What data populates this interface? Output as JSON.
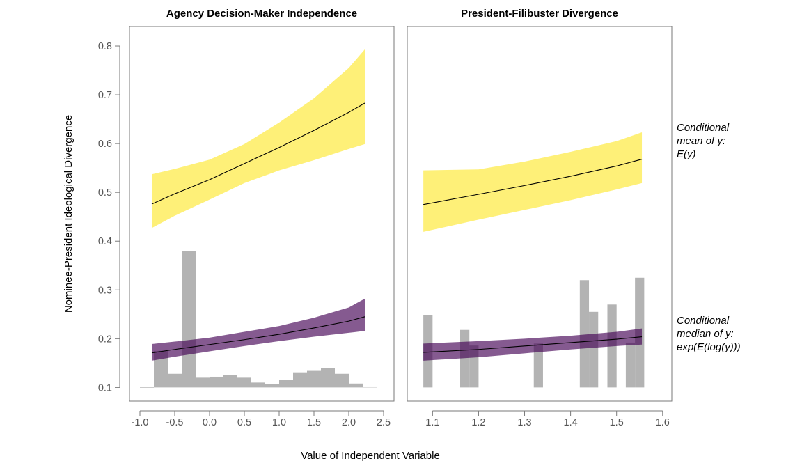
{
  "chart_data": {
    "type": "area",
    "ylabel": "Nominee-President Ideological Divergence",
    "xlabel": "Value of Independent Variable",
    "ylim": [
      0.072,
      0.84
    ],
    "yticks": [
      0.1,
      0.2,
      0.3,
      0.4,
      0.5,
      0.6,
      0.7,
      0.8
    ],
    "yticklabels": [
      "0.1",
      "0.2",
      "0.3",
      "0.4",
      "0.5",
      "0.6",
      "0.7",
      "0.8"
    ],
    "colors": {
      "mean": "#FDE725",
      "median": "#440154",
      "hist": "#A6A6A6",
      "line": "#000000",
      "axis": "#7a7a7a"
    },
    "right_labels": {
      "mean": [
        "Conditional",
        "mean of y:",
        "E(y)"
      ],
      "median": [
        "Conditional",
        "median of y:",
        "exp(E(log(y)))"
      ]
    },
    "panels": [
      {
        "title": "Agency Decision-Maker Independence",
        "xlim": [
          -1.15,
          2.65
        ],
        "xticks": [
          -1.0,
          -0.5,
          0.0,
          0.5,
          1.0,
          1.5,
          2.0,
          2.5
        ],
        "xticklabels": [
          "-1.0",
          "-0.5",
          "0.0",
          "0.5",
          "1.0",
          "1.5",
          "2.0",
          "2.5"
        ],
        "series": [
          {
            "name": "Conditional mean of y",
            "x": [
              -0.83,
              -0.5,
              0.0,
              0.5,
              1.0,
              1.5,
              2.0,
              2.23
            ],
            "fit": [
              0.476,
              0.497,
              0.526,
              0.559,
              0.592,
              0.627,
              0.664,
              0.683
            ],
            "lower": [
              0.427,
              0.452,
              0.485,
              0.519,
              0.545,
              0.566,
              0.589,
              0.599
            ],
            "upper": [
              0.537,
              0.548,
              0.567,
              0.599,
              0.643,
              0.693,
              0.755,
              0.793
            ]
          },
          {
            "name": "Conditional median of y",
            "x": [
              -0.83,
              -0.5,
              0.0,
              0.5,
              1.0,
              1.5,
              2.0,
              2.23
            ],
            "fit": [
              0.171,
              0.178,
              0.188,
              0.198,
              0.209,
              0.222,
              0.236,
              0.245
            ],
            "lower": [
              0.155,
              0.163,
              0.174,
              0.185,
              0.195,
              0.204,
              0.212,
              0.216
            ],
            "upper": [
              0.189,
              0.194,
              0.202,
              0.214,
              0.226,
              0.243,
              0.264,
              0.282
            ]
          }
        ],
        "histogram": {
          "bins": [
            [
              -1.0,
              -0.8,
              0.101
            ],
            [
              -0.8,
              -0.6,
              0.175
            ],
            [
              -0.6,
              -0.4,
              0.128
            ],
            [
              -0.4,
              -0.2,
              0.38
            ],
            [
              -0.2,
              0.0,
              0.12
            ],
            [
              0.0,
              0.2,
              0.122
            ],
            [
              0.2,
              0.4,
              0.126
            ],
            [
              0.4,
              0.6,
              0.12
            ],
            [
              0.6,
              0.8,
              0.11
            ],
            [
              0.8,
              1.0,
              0.107
            ],
            [
              1.0,
              1.2,
              0.115
            ],
            [
              1.2,
              1.4,
              0.131
            ],
            [
              1.4,
              1.6,
              0.134
            ],
            [
              1.6,
              1.8,
              0.14
            ],
            [
              1.8,
              2.0,
              0.128
            ],
            [
              2.0,
              2.2,
              0.108
            ],
            [
              2.2,
              2.4,
              0.102
            ]
          ]
        }
      },
      {
        "title": "President-Filibuster Divergence",
        "xlim": [
          1.045,
          1.62
        ],
        "xticks": [
          1.1,
          1.2,
          1.3,
          1.4,
          1.5,
          1.6
        ],
        "xticklabels": [
          "1.1",
          "1.2",
          "1.3",
          "1.4",
          "1.5",
          "1.6"
        ],
        "series": [
          {
            "name": "Conditional mean of y",
            "x": [
              1.08,
              1.2,
              1.3,
              1.4,
              1.5,
              1.555
            ],
            "fit": [
              0.475,
              0.496,
              0.514,
              0.533,
              0.554,
              0.568
            ],
            "lower": [
              0.419,
              0.444,
              0.464,
              0.484,
              0.506,
              0.519
            ],
            "upper": [
              0.545,
              0.547,
              0.563,
              0.583,
              0.605,
              0.623
            ]
          },
          {
            "name": "Conditional median of y",
            "x": [
              1.08,
              1.2,
              1.3,
              1.4,
              1.5,
              1.555
            ],
            "fit": [
              0.172,
              0.178,
              0.185,
              0.192,
              0.199,
              0.204
            ],
            "lower": [
              0.155,
              0.162,
              0.17,
              0.178,
              0.185,
              0.188
            ],
            "upper": [
              0.19,
              0.195,
              0.2,
              0.206,
              0.214,
              0.221
            ]
          }
        ],
        "histogram": {
          "bins": [
            [
              1.08,
              1.1,
              0.249
            ],
            [
              1.16,
              1.18,
              0.218
            ],
            [
              1.18,
              1.2,
              0.186
            ],
            [
              1.32,
              1.34,
              0.19
            ],
            [
              1.42,
              1.44,
              0.32
            ],
            [
              1.44,
              1.46,
              0.255
            ],
            [
              1.48,
              1.5,
              0.27
            ],
            [
              1.52,
              1.54,
              0.192
            ],
            [
              1.54,
              1.56,
              0.325
            ]
          ]
        }
      }
    ]
  }
}
